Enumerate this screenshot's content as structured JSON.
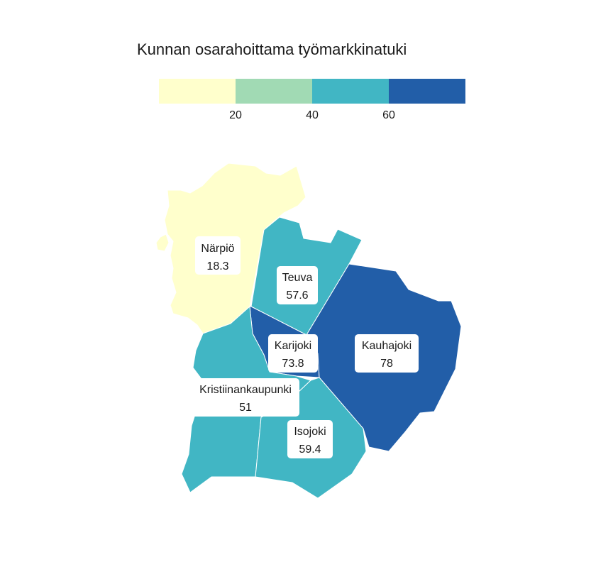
{
  "title": "Kunnan osarahoittama työmarkkinatuki",
  "legend": {
    "colors": [
      "#ffffcc",
      "#a1dab4",
      "#41b6c4",
      "#225ea8"
    ],
    "ticks": [
      "20",
      "40",
      "60"
    ],
    "breaks": [
      20,
      40,
      60
    ]
  },
  "chart_data": {
    "type": "choropleth",
    "title": "Kunnan osarahoittama työmarkkinatuki",
    "regions": [
      {
        "name": "Närpiö",
        "value": 18.3,
        "value_label": "18.3"
      },
      {
        "name": "Teuva",
        "value": 57.6,
        "value_label": "57.6"
      },
      {
        "name": "Karijoki",
        "value": 73.8,
        "value_label": "73.8"
      },
      {
        "name": "Kauhajoki",
        "value": 78,
        "value_label": "78"
      },
      {
        "name": "Kristiinankaupunki",
        "value": 51,
        "value_label": "51"
      },
      {
        "name": "Isojoki",
        "value": 59.4,
        "value_label": "59.4"
      }
    ]
  }
}
